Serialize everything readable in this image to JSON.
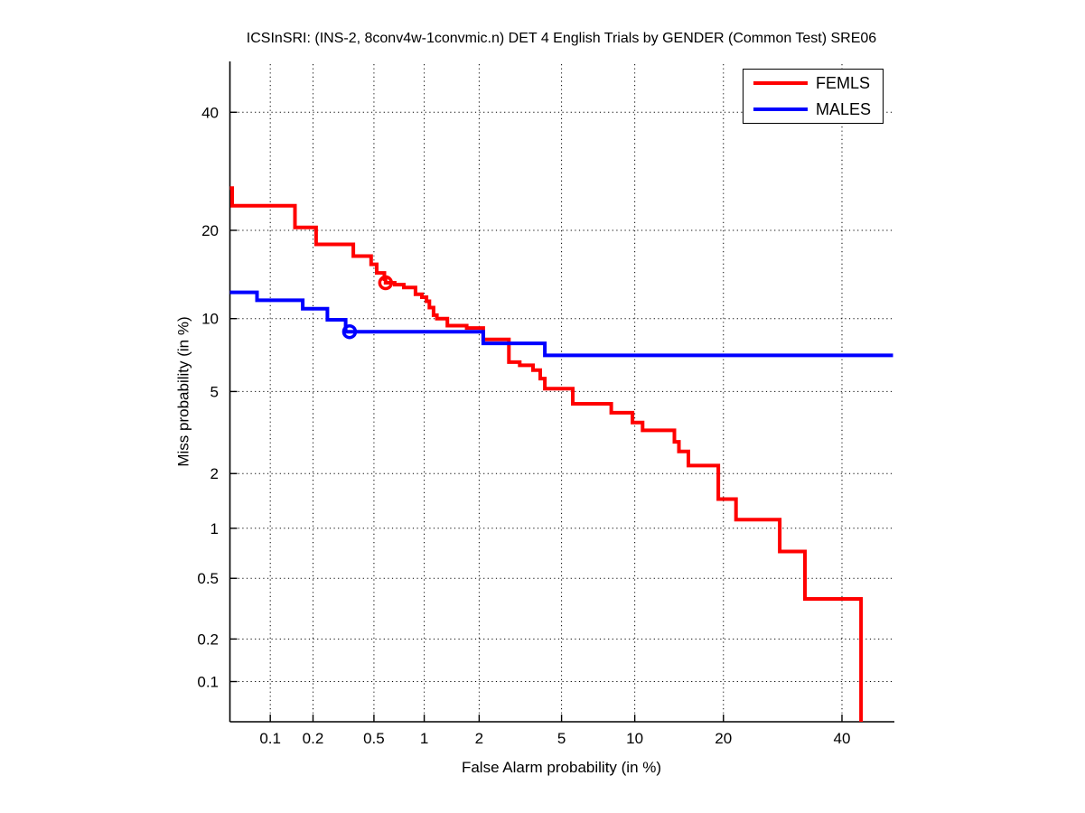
{
  "title": "ICSInSRI: (INS-2, 8conv4w-1convmic.n) DET 4 English Trials by GENDER (Common Test) SRE06",
  "chart_data": {
    "type": "line",
    "subtype": "DET-curve",
    "title": "ICSInSRI: (INS-2, 8conv4w-1convmic.n) DET 4 English Trials by GENDER (Common Test) SRE06",
    "xlabel": "False Alarm probability (in %)",
    "ylabel": "Miss probability (in %)",
    "xscale": "probit",
    "yscale": "probit",
    "xlim": [
      0.05,
      50
    ],
    "ylim": [
      0.05,
      50
    ],
    "xtick_labels": [
      "0.1",
      "0.2",
      "0.5",
      "1",
      "2",
      "5",
      "10",
      "20",
      "40"
    ],
    "ytick_labels": [
      "0.1",
      "0.2",
      "0.5",
      "1",
      "2",
      "5",
      "10",
      "20",
      "40"
    ],
    "grid": true,
    "grid_style": "dotted",
    "legend_position": "top-right",
    "axis_color": "#000000",
    "series": [
      {
        "name": "FEMLS",
        "color": "#ff0000",
        "interpolation": "step-after",
        "line_width": 4,
        "points": [
          [
            0.05,
            26.4
          ],
          [
            0.052,
            23.6
          ],
          [
            0.15,
            20.4
          ],
          [
            0.21,
            18.1
          ],
          [
            0.37,
            16.6
          ],
          [
            0.48,
            15.6
          ],
          [
            0.52,
            14.6
          ],
          [
            0.58,
            13.9
          ],
          [
            0.59,
            13.5
          ],
          [
            0.67,
            13.3
          ],
          [
            0.76,
            13.0
          ],
          [
            0.89,
            12.3
          ],
          [
            0.97,
            12.0
          ],
          [
            1.03,
            11.6
          ],
          [
            1.07,
            11.0
          ],
          [
            1.13,
            10.3
          ],
          [
            1.18,
            10.0
          ],
          [
            1.35,
            9.4
          ],
          [
            1.72,
            9.2
          ],
          [
            2.1,
            8.3
          ],
          [
            2.83,
            6.7
          ],
          [
            3.2,
            6.5
          ],
          [
            3.7,
            6.2
          ],
          [
            4.0,
            5.7
          ],
          [
            4.2,
            5.15
          ],
          [
            5.6,
            4.4
          ],
          [
            8.1,
            4.0
          ],
          [
            9.8,
            3.6
          ],
          [
            10.7,
            3.3
          ],
          [
            13.9,
            2.9
          ],
          [
            14.4,
            2.6
          ],
          [
            15.5,
            2.2
          ],
          [
            19.3,
            1.46
          ],
          [
            21.8,
            1.12
          ],
          [
            28.7,
            0.73
          ],
          [
            33.1,
            0.37
          ],
          [
            43.7,
            0.05
          ]
        ],
        "marker": {
          "fa": 0.59,
          "miss": 13.5,
          "shape": "open-circle"
        }
      },
      {
        "name": "MALES",
        "color": "#0000ff",
        "interpolation": "step-after",
        "line_width": 4,
        "points": [
          [
            0.05,
            12.5
          ],
          [
            0.08,
            11.7
          ],
          [
            0.17,
            10.9
          ],
          [
            0.25,
            9.9
          ],
          [
            0.33,
            8.9
          ],
          [
            2.1,
            8.0
          ],
          [
            4.2,
            7.15
          ],
          [
            50,
            7.15
          ]
        ],
        "marker": {
          "fa": 0.35,
          "miss": 8.9,
          "shape": "open-circle"
        }
      }
    ]
  }
}
